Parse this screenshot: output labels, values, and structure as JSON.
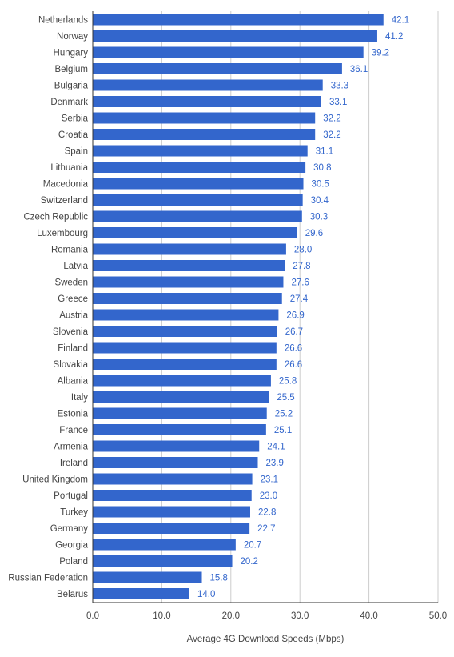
{
  "colors": {
    "bar": "#3366cc",
    "grid": "#cccccc",
    "axis": "#333333",
    "text": "#444444"
  },
  "chart_data": {
    "type": "bar",
    "orientation": "horizontal",
    "title": "",
    "xlabel": "Average 4G Download Speeds (Mbps)",
    "ylabel": "",
    "xlim": [
      0,
      50
    ],
    "xticks": [
      "0.0",
      "10.0",
      "20.0",
      "30.0",
      "40.0",
      "50.0"
    ],
    "grid": true,
    "legend": "none",
    "categories": [
      "Netherlands",
      "Norway",
      "Hungary",
      "Belgium",
      "Bulgaria",
      "Denmark",
      "Serbia",
      "Croatia",
      "Spain",
      "Lithuania",
      "Macedonia",
      "Switzerland",
      "Czech Republic",
      "Luxembourg",
      "Romania",
      "Latvia",
      "Sweden",
      "Greece",
      "Austria",
      "Slovenia",
      "Finland",
      "Slovakia",
      "Albania",
      "Italy",
      "Estonia",
      "France",
      "Armenia",
      "Ireland",
      "United Kingdom",
      "Portugal",
      "Turkey",
      "Germany",
      "Georgia",
      "Poland",
      "Russian Federation",
      "Belarus"
    ],
    "values": [
      42.1,
      41.2,
      39.2,
      36.1,
      33.3,
      33.1,
      32.2,
      32.2,
      31.1,
      30.8,
      30.5,
      30.4,
      30.3,
      29.6,
      28.0,
      27.8,
      27.6,
      27.4,
      26.9,
      26.7,
      26.6,
      26.6,
      25.8,
      25.5,
      25.2,
      25.1,
      24.1,
      23.9,
      23.1,
      23.0,
      22.8,
      22.7,
      20.7,
      20.2,
      15.8,
      14.0
    ],
    "value_labels": [
      "42.1",
      "41.2",
      "39.2",
      "36.1",
      "33.3",
      "33.1",
      "32.2",
      "32.2",
      "31.1",
      "30.8",
      "30.5",
      "30.4",
      "30.3",
      "29.6",
      "28.0",
      "27.8",
      "27.6",
      "27.4",
      "26.9",
      "26.7",
      "26.6",
      "26.6",
      "25.8",
      "25.5",
      "25.2",
      "25.1",
      "24.1",
      "23.9",
      "23.1",
      "23.0",
      "22.8",
      "22.7",
      "20.7",
      "20.2",
      "15.8",
      "14.0"
    ]
  }
}
